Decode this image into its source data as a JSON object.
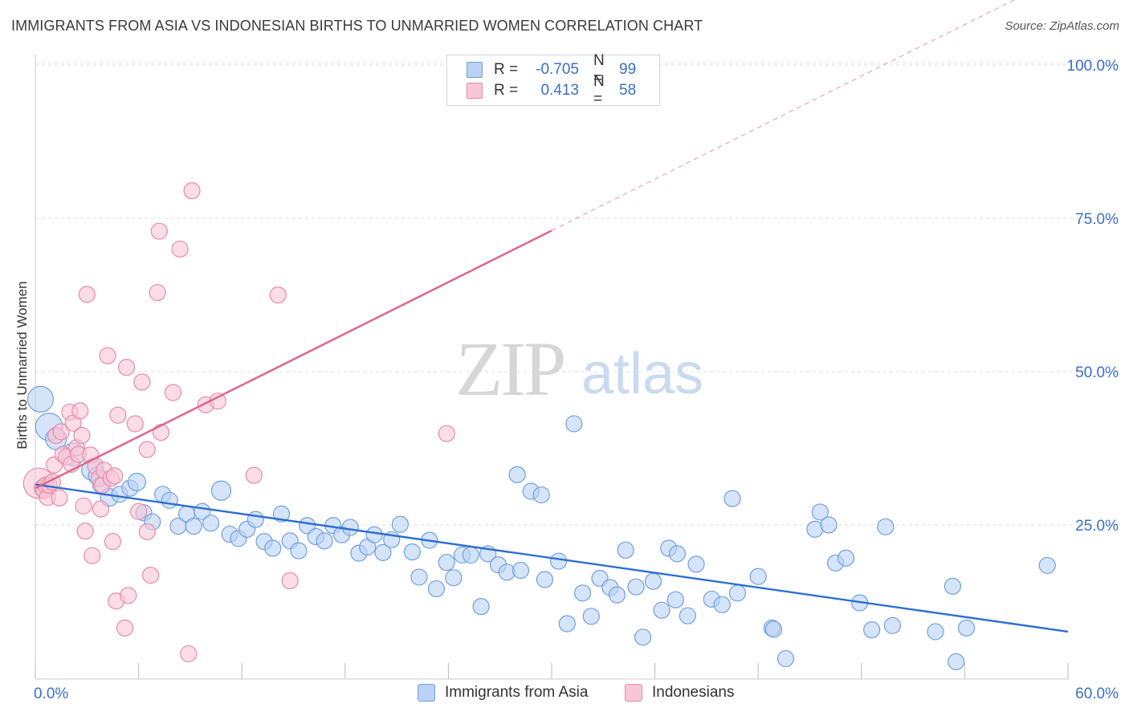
{
  "title": "IMMIGRANTS FROM ASIA VS INDONESIAN BIRTHS TO UNMARRIED WOMEN CORRELATION CHART",
  "source": "Source: ZipAtlas.com",
  "watermark": {
    "zip": "ZIP",
    "atlas": "atlas"
  },
  "legend_top": [
    {
      "r_label": "R =",
      "r_value": "-0.705",
      "n_label": "N =",
      "n_value": "99"
    },
    {
      "r_label": "R =",
      "r_value": "0.413",
      "n_label": "N =",
      "n_value": "58"
    }
  ],
  "colors": {
    "blue_fill": "#b9d2f3",
    "blue_stroke": "#6f9fde",
    "blue_line": "#2c6fd1",
    "pink_fill": "#f8c6d6",
    "pink_stroke": "#e98aa8",
    "pink_line": "#e0628b",
    "tick_label": "#3b6fc9",
    "grid": "#dddddd"
  },
  "chart_data": {
    "type": "scatter",
    "title": "IMMIGRANTS FROM ASIA VS INDONESIAN BIRTHS TO UNMARRIED WOMEN CORRELATION CHART",
    "xlabel": "",
    "ylabel": "Births to Unmarried Women",
    "xlim": [
      0,
      60
    ],
    "ylim": [
      0,
      105
    ],
    "x_tick_labels": [
      "0.0%",
      "60.0%"
    ],
    "y_ticks": [
      25,
      50,
      75,
      100
    ],
    "y_tick_labels": [
      "25.0%",
      "50.0%",
      "75.0%",
      "100.0%"
    ],
    "grid": true,
    "legend_position": "bottom",
    "series": [
      {
        "name": "Immigrants from Asia",
        "r": -0.705,
        "n": 99,
        "trend": {
          "x": [
            0,
            60
          ],
          "y": [
            31.6,
            7.6
          ],
          "dashed_x": null
        },
        "points": [
          {
            "x": 0.3,
            "y": 45.5,
            "s": 1.6
          },
          {
            "x": 0.8,
            "y": 41,
            "s": 1.7
          },
          {
            "x": 1.2,
            "y": 39,
            "s": 1.3
          },
          {
            "x": 2.2,
            "y": 36.5,
            "s": 1.4
          },
          {
            "x": 3.3,
            "y": 34,
            "s": 1.3
          },
          {
            "x": 3.6,
            "y": 33,
            "s": 1.1
          },
          {
            "x": 3.8,
            "y": 31.5,
            "s": 1.0
          },
          {
            "x": 4.3,
            "y": 29.5,
            "s": 1.1
          },
          {
            "x": 4.9,
            "y": 30,
            "s": 1.0
          },
          {
            "x": 5.5,
            "y": 31,
            "s": 1.0
          },
          {
            "x": 5.9,
            "y": 32,
            "s": 1.1
          },
          {
            "x": 6.3,
            "y": 27,
            "s": 1.0
          },
          {
            "x": 6.8,
            "y": 25.5,
            "s": 1.0
          },
          {
            "x": 7.4,
            "y": 30,
            "s": 1.0
          },
          {
            "x": 7.8,
            "y": 29,
            "s": 1.0
          },
          {
            "x": 8.3,
            "y": 24.8,
            "s": 1.0
          },
          {
            "x": 8.8,
            "y": 26.8,
            "s": 1.0
          },
          {
            "x": 9.2,
            "y": 24.8,
            "s": 1.0
          },
          {
            "x": 9.7,
            "y": 27.2,
            "s": 1.0
          },
          {
            "x": 10.2,
            "y": 25.3,
            "s": 1.0
          },
          {
            "x": 10.8,
            "y": 30.6,
            "s": 1.2
          },
          {
            "x": 11.3,
            "y": 23.5,
            "s": 1.0
          },
          {
            "x": 11.8,
            "y": 22.8,
            "s": 1.0
          },
          {
            "x": 12.3,
            "y": 24.3,
            "s": 1.0
          },
          {
            "x": 12.8,
            "y": 25.9,
            "s": 1.0
          },
          {
            "x": 13.3,
            "y": 22.3,
            "s": 1.0
          },
          {
            "x": 13.8,
            "y": 21.2,
            "s": 1.0
          },
          {
            "x": 14.3,
            "y": 26.8,
            "s": 1.0
          },
          {
            "x": 14.8,
            "y": 22.4,
            "s": 1.0
          },
          {
            "x": 15.3,
            "y": 20.8,
            "s": 1.0
          },
          {
            "x": 15.8,
            "y": 24.9,
            "s": 1.0
          },
          {
            "x": 16.3,
            "y": 23.1,
            "s": 1.0
          },
          {
            "x": 16.8,
            "y": 22.4,
            "s": 1.0
          },
          {
            "x": 17.3,
            "y": 24.9,
            "s": 1.0
          },
          {
            "x": 17.8,
            "y": 23.4,
            "s": 1.0
          },
          {
            "x": 18.3,
            "y": 24.6,
            "s": 1.0
          },
          {
            "x": 18.8,
            "y": 20.4,
            "s": 1.0
          },
          {
            "x": 19.3,
            "y": 21.4,
            "s": 1.0
          },
          {
            "x": 19.7,
            "y": 23.4,
            "s": 1.0
          },
          {
            "x": 20.2,
            "y": 20.5,
            "s": 1.0
          },
          {
            "x": 20.7,
            "y": 22.6,
            "s": 1.0
          },
          {
            "x": 21.2,
            "y": 25.1,
            "s": 1.0
          },
          {
            "x": 21.9,
            "y": 20.6,
            "s": 1.0
          },
          {
            "x": 22.3,
            "y": 16.5,
            "s": 1.0
          },
          {
            "x": 22.9,
            "y": 22.5,
            "s": 1.0
          },
          {
            "x": 23.3,
            "y": 14.6,
            "s": 1.0
          },
          {
            "x": 23.9,
            "y": 18.9,
            "s": 1.0
          },
          {
            "x": 24.3,
            "y": 16.4,
            "s": 1.0
          },
          {
            "x": 24.8,
            "y": 20.1,
            "s": 1.0
          },
          {
            "x": 25.3,
            "y": 20.1,
            "s": 1.0
          },
          {
            "x": 25.9,
            "y": 11.7,
            "s": 1.0
          },
          {
            "x": 26.3,
            "y": 20.3,
            "s": 1.0
          },
          {
            "x": 26.9,
            "y": 18.5,
            "s": 1.0
          },
          {
            "x": 27.4,
            "y": 17.3,
            "s": 1.0
          },
          {
            "x": 28.0,
            "y": 33.2,
            "s": 1.0
          },
          {
            "x": 28.2,
            "y": 17.6,
            "s": 1.0
          },
          {
            "x": 28.8,
            "y": 30.5,
            "s": 1.0
          },
          {
            "x": 29.4,
            "y": 29.9,
            "s": 1.0
          },
          {
            "x": 29.6,
            "y": 16.1,
            "s": 1.0
          },
          {
            "x": 30.4,
            "y": 19.1,
            "s": 1.0
          },
          {
            "x": 30.9,
            "y": 8.9,
            "s": 1.0
          },
          {
            "x": 31.3,
            "y": 41.5,
            "s": 1.0
          },
          {
            "x": 31.8,
            "y": 13.9,
            "s": 1.0
          },
          {
            "x": 32.3,
            "y": 10.1,
            "s": 1.0
          },
          {
            "x": 32.8,
            "y": 16.3,
            "s": 1.0
          },
          {
            "x": 33.4,
            "y": 14.8,
            "s": 1.0
          },
          {
            "x": 33.8,
            "y": 13.6,
            "s": 1.0
          },
          {
            "x": 34.3,
            "y": 20.9,
            "s": 1.0
          },
          {
            "x": 34.9,
            "y": 14.9,
            "s": 1.0
          },
          {
            "x": 35.3,
            "y": 6.7,
            "s": 1.0
          },
          {
            "x": 35.9,
            "y": 15.8,
            "s": 1.0
          },
          {
            "x": 36.4,
            "y": 11.1,
            "s": 1.0
          },
          {
            "x": 36.8,
            "y": 21.2,
            "s": 1.0
          },
          {
            "x": 37.2,
            "y": 12.8,
            "s": 1.0
          },
          {
            "x": 37.3,
            "y": 20.3,
            "s": 1.0
          },
          {
            "x": 37.9,
            "y": 10.2,
            "s": 1.0
          },
          {
            "x": 38.4,
            "y": 18.6,
            "s": 1.0
          },
          {
            "x": 39.3,
            "y": 12.9,
            "s": 1.0
          },
          {
            "x": 39.9,
            "y": 12.0,
            "s": 1.0
          },
          {
            "x": 40.5,
            "y": 29.3,
            "s": 1.0
          },
          {
            "x": 40.8,
            "y": 13.9,
            "s": 1.0
          },
          {
            "x": 42.0,
            "y": 16.6,
            "s": 1.0
          },
          {
            "x": 42.8,
            "y": 8.2,
            "s": 1.0
          },
          {
            "x": 42.9,
            "y": 8.0,
            "s": 1.0
          },
          {
            "x": 43.6,
            "y": 3.2,
            "s": 1.0
          },
          {
            "x": 45.3,
            "y": 24.3,
            "s": 1.0
          },
          {
            "x": 45.6,
            "y": 27.1,
            "s": 1.0
          },
          {
            "x": 46.1,
            "y": 25.0,
            "s": 1.0
          },
          {
            "x": 46.5,
            "y": 18.8,
            "s": 1.0
          },
          {
            "x": 47.1,
            "y": 19.6,
            "s": 1.0
          },
          {
            "x": 47.9,
            "y": 12.3,
            "s": 1.0
          },
          {
            "x": 48.6,
            "y": 7.9,
            "s": 1.0
          },
          {
            "x": 49.4,
            "y": 24.7,
            "s": 1.0
          },
          {
            "x": 49.8,
            "y": 8.6,
            "s": 1.0
          },
          {
            "x": 52.3,
            "y": 7.6,
            "s": 1.0
          },
          {
            "x": 53.3,
            "y": 15.0,
            "s": 1.0
          },
          {
            "x": 53.5,
            "y": 2.7,
            "s": 1.0
          },
          {
            "x": 54.1,
            "y": 8.2,
            "s": 1.0
          },
          {
            "x": 58.8,
            "y": 18.4,
            "s": 1.0
          }
        ]
      },
      {
        "name": "Indonesians",
        "r": 0.413,
        "n": 58,
        "trend": {
          "x": [
            0,
            30
          ],
          "y": [
            31.0,
            73.0
          ],
          "dashed_x": [
            30,
            61.5
          ]
        },
        "points": [
          {
            "x": 0.2,
            "y": 31.8,
            "s": 1.9
          },
          {
            "x": 0.4,
            "y": 31.0,
            "s": 1.0
          },
          {
            "x": 0.5,
            "y": 30.6,
            "s": 1.0
          },
          {
            "x": 0.6,
            "y": 31.5,
            "s": 1.0
          },
          {
            "x": 0.7,
            "y": 29.5,
            "s": 1.0
          },
          {
            "x": 0.8,
            "y": 31.5,
            "s": 1.0
          },
          {
            "x": 1.0,
            "y": 32.0,
            "s": 1.0
          },
          {
            "x": 1.1,
            "y": 34.8,
            "s": 1.0
          },
          {
            "x": 1.2,
            "y": 39.6,
            "s": 1.0
          },
          {
            "x": 1.4,
            "y": 29.4,
            "s": 1.0
          },
          {
            "x": 1.5,
            "y": 40.2,
            "s": 1.0
          },
          {
            "x": 1.6,
            "y": 36.5,
            "s": 1.0
          },
          {
            "x": 1.8,
            "y": 36.1,
            "s": 1.0
          },
          {
            "x": 2.0,
            "y": 43.4,
            "s": 1.0
          },
          {
            "x": 2.1,
            "y": 34.9,
            "s": 1.0
          },
          {
            "x": 2.2,
            "y": 41.6,
            "s": 1.0
          },
          {
            "x": 2.4,
            "y": 37.6,
            "s": 1.0
          },
          {
            "x": 2.5,
            "y": 36.5,
            "s": 1.0
          },
          {
            "x": 2.6,
            "y": 43.6,
            "s": 1.0
          },
          {
            "x": 2.7,
            "y": 39.6,
            "s": 1.0
          },
          {
            "x": 2.8,
            "y": 28.1,
            "s": 1.0
          },
          {
            "x": 2.9,
            "y": 24.0,
            "s": 1.0
          },
          {
            "x": 3.0,
            "y": 62.6,
            "s": 1.0
          },
          {
            "x": 3.2,
            "y": 36.4,
            "s": 1.0
          },
          {
            "x": 3.3,
            "y": 20.0,
            "s": 1.0
          },
          {
            "x": 3.5,
            "y": 34.6,
            "s": 1.0
          },
          {
            "x": 3.7,
            "y": 32.6,
            "s": 1.0
          },
          {
            "x": 3.8,
            "y": 27.6,
            "s": 1.0
          },
          {
            "x": 3.9,
            "y": 31.5,
            "s": 1.0
          },
          {
            "x": 4.0,
            "y": 33.9,
            "s": 1.0
          },
          {
            "x": 4.2,
            "y": 52.6,
            "s": 1.0
          },
          {
            "x": 4.4,
            "y": 32.6,
            "s": 1.0
          },
          {
            "x": 4.5,
            "y": 22.3,
            "s": 1.0
          },
          {
            "x": 4.6,
            "y": 33.0,
            "s": 1.0
          },
          {
            "x": 4.7,
            "y": 12.6,
            "s": 1.0
          },
          {
            "x": 4.8,
            "y": 42.9,
            "s": 1.0
          },
          {
            "x": 5.2,
            "y": 8.2,
            "s": 1.0
          },
          {
            "x": 5.3,
            "y": 50.7,
            "s": 1.0
          },
          {
            "x": 5.4,
            "y": 13.5,
            "s": 1.0
          },
          {
            "x": 5.8,
            "y": 41.5,
            "s": 1.0
          },
          {
            "x": 6.0,
            "y": 27.2,
            "s": 1.0
          },
          {
            "x": 6.2,
            "y": 48.3,
            "s": 1.0
          },
          {
            "x": 6.5,
            "y": 37.3,
            "s": 1.0
          },
          {
            "x": 6.5,
            "y": 23.9,
            "s": 1.0
          },
          {
            "x": 6.7,
            "y": 16.8,
            "s": 1.0
          },
          {
            "x": 7.1,
            "y": 62.9,
            "s": 1.0
          },
          {
            "x": 7.2,
            "y": 72.9,
            "s": 1.0
          },
          {
            "x": 7.3,
            "y": 40.1,
            "s": 1.0
          },
          {
            "x": 8.0,
            "y": 46.6,
            "s": 1.0
          },
          {
            "x": 8.4,
            "y": 70.0,
            "s": 1.0
          },
          {
            "x": 8.9,
            "y": 4.0,
            "s": 1.0
          },
          {
            "x": 9.1,
            "y": 79.5,
            "s": 1.0
          },
          {
            "x": 9.9,
            "y": 44.6,
            "s": 1.0
          },
          {
            "x": 10.6,
            "y": 45.2,
            "s": 1.0
          },
          {
            "x": 12.7,
            "y": 33.1,
            "s": 1.0
          },
          {
            "x": 14.1,
            "y": 62.5,
            "s": 1.0
          },
          {
            "x": 14.8,
            "y": 15.9,
            "s": 1.0
          },
          {
            "x": 23.9,
            "y": 39.9,
            "s": 1.0
          }
        ]
      }
    ]
  }
}
